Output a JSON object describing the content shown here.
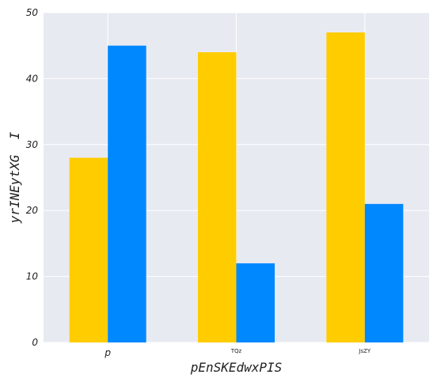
{
  "chart_data": {
    "type": "bar",
    "title": "",
    "xlabel": "pEnSKEdwxPIS",
    "ylabel": "yrINEytXG  I",
    "categories": [
      "p",
      "TQz",
      "JsZY"
    ],
    "series": [
      {
        "values": [
          28,
          44,
          47
        ],
        "color": "#FFCC00"
      },
      {
        "values": [
          45,
          12,
          21
        ],
        "color": "#0088FF"
      }
    ],
    "ylim": [
      0,
      50
    ],
    "yticks": [
      0,
      10,
      20,
      30,
      40,
      50
    ],
    "grid": true,
    "background": "#E8EAF2",
    "legend": "none"
  }
}
